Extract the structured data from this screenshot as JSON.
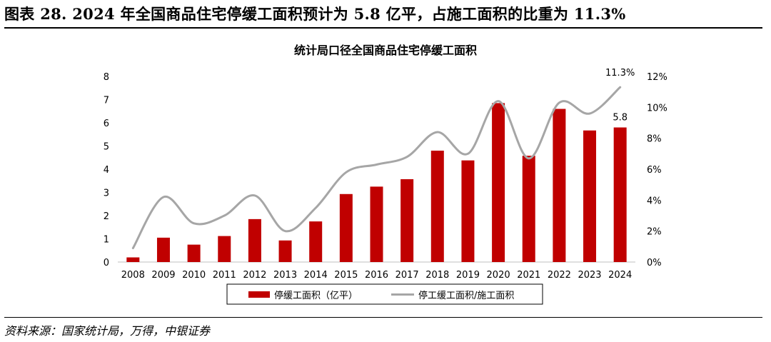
{
  "figure": {
    "title": "图表 28. 2024 年全国商品住宅停缓工面积预计为 5.8 亿平，占施工面积的比重为 11.3%",
    "source": "资料来源：国家统计局，万得，中银证券"
  },
  "chart_data": {
    "type": "bar",
    "title": "统计局口径全国商品住宅停缓工面积",
    "categories": [
      "2008",
      "2009",
      "2010",
      "2011",
      "2012",
      "2013",
      "2014",
      "2015",
      "2016",
      "2017",
      "2018",
      "2019",
      "2020",
      "2021",
      "2022",
      "2023",
      "2024"
    ],
    "series": [
      {
        "name": "停缓工面积（亿平）",
        "type": "bar",
        "axis": "left",
        "color": "#C00000",
        "values": [
          0.2,
          1.05,
          0.75,
          1.12,
          1.85,
          0.93,
          1.75,
          2.93,
          3.25,
          3.57,
          4.8,
          4.38,
          6.85,
          4.58,
          6.6,
          5.67,
          5.8
        ]
      },
      {
        "name": "停工缓工面积/施工面积",
        "type": "line",
        "axis": "right",
        "color": "#A6A6A6",
        "values": [
          0.9,
          4.2,
          2.5,
          3.0,
          4.3,
          2.0,
          3.5,
          5.8,
          6.3,
          6.8,
          8.4,
          7.0,
          10.4,
          6.7,
          10.3,
          9.6,
          11.3
        ]
      }
    ],
    "y_left": {
      "min": 0,
      "max": 8,
      "ticks": [
        "0",
        "1",
        "2",
        "3",
        "4",
        "5",
        "6",
        "7",
        "8"
      ]
    },
    "y_right": {
      "min": 0,
      "max": 12,
      "ticks": [
        "0%",
        "2%",
        "4%",
        "6%",
        "8%",
        "10%",
        "12%"
      ]
    },
    "annotations": {
      "bar_last": "5.8",
      "line_last": "11.3%"
    },
    "legend_position": "bottom",
    "grid": false
  }
}
